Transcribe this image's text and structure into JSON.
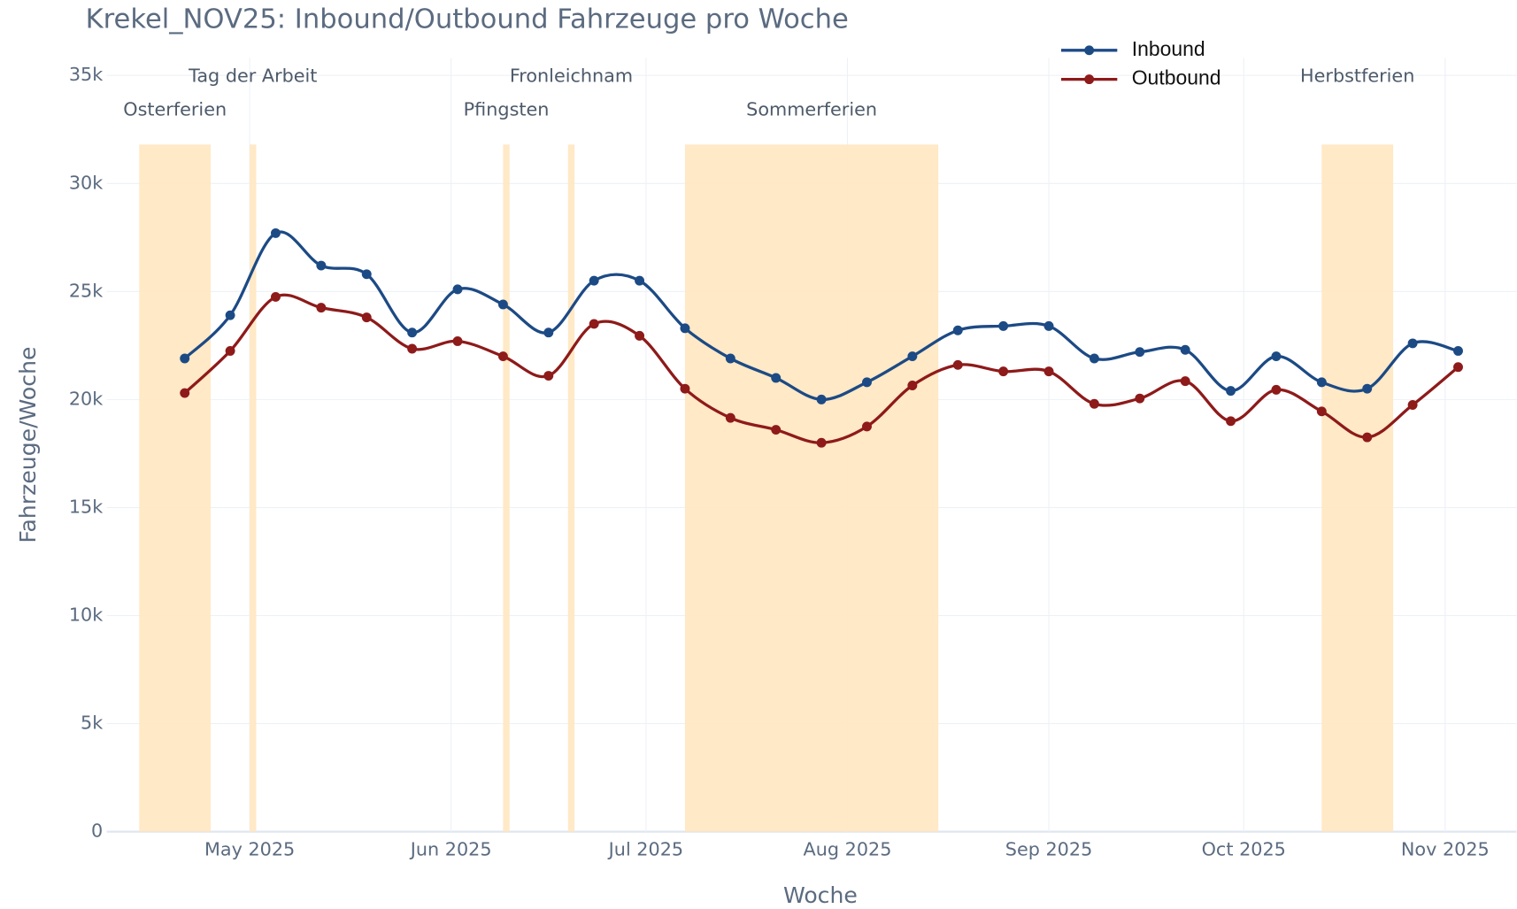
{
  "chart_data": {
    "type": "line",
    "title": "Krekel_NOV25: Inbound/Outbound Fahrzeuge pro Woche",
    "x_label": "Woche",
    "y_label": "Fahrzeuge/Woche",
    "x": [
      "2025-04-21",
      "2025-04-28",
      "2025-05-05",
      "2025-05-12",
      "2025-05-19",
      "2025-05-26",
      "2025-06-02",
      "2025-06-09",
      "2025-06-16",
      "2025-06-23",
      "2025-06-30",
      "2025-07-07",
      "2025-07-14",
      "2025-07-21",
      "2025-07-28",
      "2025-08-04",
      "2025-08-11",
      "2025-08-18",
      "2025-08-25",
      "2025-09-01",
      "2025-09-08",
      "2025-09-15",
      "2025-09-22",
      "2025-09-29",
      "2025-10-06",
      "2025-10-13",
      "2025-10-20",
      "2025-10-27",
      "2025-11-03"
    ],
    "series": [
      {
        "name": "Inbound",
        "color": "#1c4a85",
        "values": [
          21900,
          23900,
          27700,
          26200,
          25800,
          23100,
          25100,
          24400,
          23100,
          25500,
          25500,
          23300,
          21900,
          21000,
          20000,
          20800,
          22000,
          23200,
          23400,
          23400,
          21900,
          22200,
          22300,
          20400,
          22000,
          20800,
          20500,
          22600,
          22250
        ]
      },
      {
        "name": "Outbound",
        "color": "#8e1a1a",
        "values": [
          20300,
          22250,
          24750,
          24250,
          23800,
          22350,
          22700,
          22000,
          21100,
          23500,
          22950,
          20500,
          19150,
          18600,
          18000,
          18750,
          20650,
          21600,
          21300,
          21300,
          19800,
          20050,
          20850,
          19000,
          20450,
          19450,
          18250,
          19750,
          21500
        ]
      }
    ],
    "regions": [
      {
        "label": "Osterferien",
        "start": "2025-04-14",
        "end": "2025-04-25"
      },
      {
        "label": "Tag der Arbeit",
        "start": "2025-05-01",
        "end": "2025-05-02"
      },
      {
        "label": "Pfingsten",
        "start": "2025-06-09",
        "end": "2025-06-10"
      },
      {
        "label": "Fronleichnam",
        "start": "2025-06-19",
        "end": "2025-06-20"
      },
      {
        "label": "Sommerferien",
        "start": "2025-07-07",
        "end": "2025-08-15"
      },
      {
        "label": "Herbstferien",
        "start": "2025-10-13",
        "end": "2025-10-24"
      }
    ],
    "region_color": "#ffe7c0",
    "region_top": 31800,
    "xlim": [
      "2025-04-09",
      "2025-11-12"
    ],
    "xticks": [
      {
        "value": "2025-05-01",
        "label": "May 2025"
      },
      {
        "value": "2025-06-01",
        "label": "Jun 2025"
      },
      {
        "value": "2025-07-01",
        "label": "Jul 2025"
      },
      {
        "value": "2025-08-01",
        "label": "Aug 2025"
      },
      {
        "value": "2025-09-01",
        "label": "Sep 2025"
      },
      {
        "value": "2025-10-01",
        "label": "Oct 2025"
      },
      {
        "value": "2025-11-01",
        "label": "Nov 2025"
      }
    ],
    "ylim": [
      0,
      35000
    ],
    "yticks": [
      0,
      {
        "value": 5000,
        "label": "5k"
      },
      {
        "value": 10000,
        "label": "10k"
      },
      {
        "value": 15000,
        "label": "15k"
      },
      {
        "value": 20000,
        "label": "20k"
      },
      {
        "value": 25000,
        "label": "25k"
      },
      {
        "value": 30000,
        "label": "30k"
      },
      {
        "value": 35000,
        "label": "35k"
      }
    ],
    "grid": true,
    "legend": "top-right"
  }
}
